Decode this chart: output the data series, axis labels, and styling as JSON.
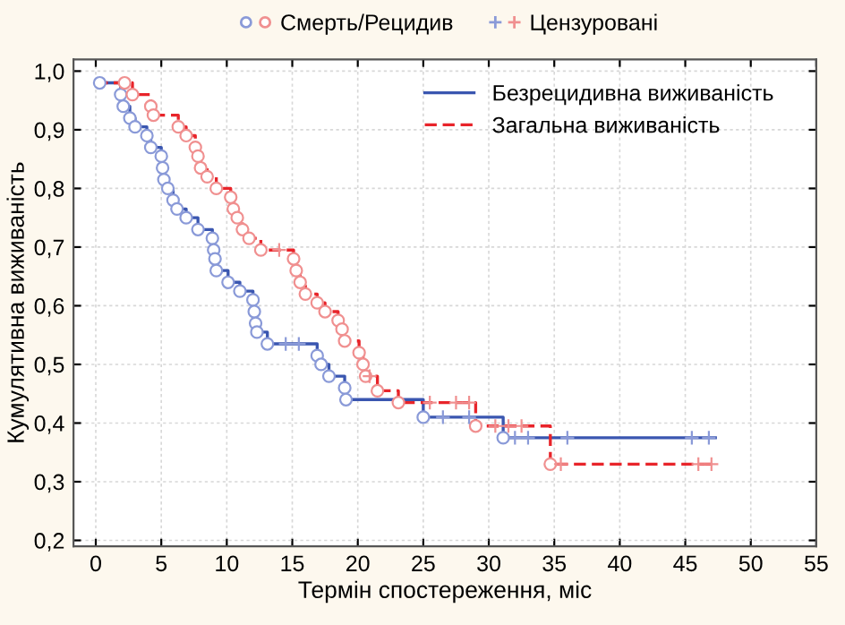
{
  "chart_data": {
    "type": "step",
    "xlabel": "Термін спостереження, міс",
    "ylabel": "Кумулятивна виживаність",
    "xlim": [
      -1.7,
      55
    ],
    "xticks": [
      0,
      5,
      10,
      15,
      20,
      25,
      30,
      35,
      40,
      45,
      50,
      55
    ],
    "ylim": [
      0.19,
      1.02
    ],
    "yticks": [
      {
        "value": 0.2,
        "label": "0,2"
      },
      {
        "value": 0.3,
        "label": "0,3"
      },
      {
        "value": 0.4,
        "label": "0,4"
      },
      {
        "value": 0.5,
        "label": "0,5"
      },
      {
        "value": 0.6,
        "label": "0,6"
      },
      {
        "value": 0.7,
        "label": "0,7"
      },
      {
        "value": 0.8,
        "label": "0,8"
      },
      {
        "value": 0.9,
        "label": "0,9"
      },
      {
        "value": 1.0,
        "label": "1,0"
      }
    ],
    "grid": true,
    "legend": "top right",
    "series": [
      {
        "name": "Безрецидивна виживаність",
        "color": "#3a56b0",
        "line_style": "solid",
        "x": [
          0,
          1.9,
          2.1,
          2.6,
          3.0,
          3.9,
          4.2,
          5.0,
          5.1,
          5.2,
          5.5,
          5.9,
          6.2,
          6.9,
          7.8,
          8.9,
          9.0,
          9.1,
          9.2,
          10.1,
          11.0,
          12.0,
          12.1,
          12.2,
          12.3,
          13.1,
          16.9,
          17.2,
          17.8,
          19.0,
          19.1,
          25.0,
          31.1,
          47.3
        ],
        "values": [
          0.98,
          0.96,
          0.94,
          0.92,
          0.905,
          0.89,
          0.87,
          0.855,
          0.835,
          0.815,
          0.8,
          0.78,
          0.765,
          0.75,
          0.73,
          0.715,
          0.695,
          0.68,
          0.66,
          0.64,
          0.625,
          0.61,
          0.59,
          0.57,
          0.555,
          0.535,
          0.515,
          0.5,
          0.48,
          0.46,
          0.44,
          0.41,
          0.375,
          0.375
        ]
      },
      {
        "name": "Загальна виживаність",
        "color": "#e8242a",
        "line_style": "dashed",
        "x": [
          0,
          2.8,
          4.2,
          4.4,
          6.3,
          6.9,
          7.6,
          7.8,
          8.0,
          8.5,
          9.2,
          10.3,
          10.5,
          10.8,
          11.2,
          11.7,
          12.6,
          15.1,
          15.3,
          15.6,
          16.0,
          16.9,
          17.5,
          18.5,
          18.8,
          19.0,
          20.1,
          20.4,
          20.6,
          21.5,
          23.1,
          29.0,
          34.7,
          47.3
        ],
        "values": [
          0.98,
          0.96,
          0.94,
          0.925,
          0.905,
          0.89,
          0.87,
          0.855,
          0.835,
          0.82,
          0.8,
          0.785,
          0.765,
          0.75,
          0.73,
          0.715,
          0.695,
          0.68,
          0.66,
          0.64,
          0.62,
          0.605,
          0.59,
          0.575,
          0.56,
          0.54,
          0.52,
          0.5,
          0.48,
          0.455,
          0.435,
          0.395,
          0.33,
          0.33
        ]
      },
      {
        "type": "scatter",
        "name": "Смерть/Рецидив",
        "marker": "circle",
        "x": [
          0.3,
          1.9,
          2.1,
          2.6,
          3.0,
          3.9,
          4.2,
          5.0,
          5.1,
          5.2,
          5.5,
          5.9,
          6.2,
          6.9,
          7.8,
          8.9,
          9.0,
          9.1,
          9.2,
          10.1,
          11.0,
          12.0,
          12.1,
          12.2,
          12.3,
          13.1,
          16.9,
          17.2,
          17.8,
          19.0,
          19.1,
          25.0,
          31.1,
          2.2,
          2.8,
          4.2,
          4.4,
          6.3,
          6.9,
          7.6,
          7.8,
          8.0,
          8.5,
          9.2,
          10.3,
          10.5,
          10.8,
          11.2,
          11.7,
          12.6,
          15.1,
          15.3,
          15.6,
          16.0,
          16.9,
          17.5,
          18.5,
          18.8,
          19.0,
          20.1,
          20.4,
          20.6,
          21.5,
          23.1,
          29.0,
          34.7
        ],
        "values": [
          0.98,
          0.96,
          0.94,
          0.92,
          0.905,
          0.89,
          0.87,
          0.855,
          0.835,
          0.815,
          0.8,
          0.78,
          0.765,
          0.75,
          0.73,
          0.715,
          0.695,
          0.68,
          0.66,
          0.64,
          0.625,
          0.61,
          0.59,
          0.57,
          0.555,
          0.535,
          0.515,
          0.5,
          0.48,
          0.46,
          0.44,
          0.41,
          0.375,
          0.98,
          0.96,
          0.94,
          0.925,
          0.905,
          0.89,
          0.87,
          0.855,
          0.835,
          0.82,
          0.8,
          0.785,
          0.765,
          0.75,
          0.73,
          0.715,
          0.695,
          0.68,
          0.66,
          0.64,
          0.62,
          0.605,
          0.59,
          0.575,
          0.56,
          0.54,
          0.52,
          0.5,
          0.48,
          0.455,
          0.435,
          0.395,
          0.33
        ],
        "colors": [
          "#8a9ad8",
          "#8a9ad8",
          "#8a9ad8",
          "#8a9ad8",
          "#8a9ad8",
          "#8a9ad8",
          "#8a9ad8",
          "#8a9ad8",
          "#8a9ad8",
          "#8a9ad8",
          "#8a9ad8",
          "#8a9ad8",
          "#8a9ad8",
          "#8a9ad8",
          "#8a9ad8",
          "#8a9ad8",
          "#8a9ad8",
          "#8a9ad8",
          "#8a9ad8",
          "#8a9ad8",
          "#8a9ad8",
          "#8a9ad8",
          "#8a9ad8",
          "#8a9ad8",
          "#8a9ad8",
          "#8a9ad8",
          "#8a9ad8",
          "#8a9ad8",
          "#8a9ad8",
          "#8a9ad8",
          "#8a9ad8",
          "#8a9ad8",
          "#8a9ad8",
          "#f09090",
          "#f09090",
          "#f09090",
          "#f09090",
          "#f09090",
          "#f09090",
          "#f09090",
          "#f09090",
          "#f09090",
          "#f09090",
          "#f09090",
          "#f09090",
          "#f09090",
          "#f09090",
          "#f09090",
          "#f09090",
          "#f09090",
          "#f09090",
          "#f09090",
          "#f09090",
          "#f09090",
          "#f09090",
          "#f09090",
          "#f09090",
          "#f09090",
          "#f09090",
          "#f09090",
          "#f09090",
          "#f09090",
          "#f09090",
          "#f09090",
          "#f09090",
          "#f09090"
        ]
      },
      {
        "type": "scatter",
        "name": "Цензуровані",
        "marker": "cross",
        "x": [
          14.5,
          15.5,
          26.5,
          28.5,
          32.0,
          33.0,
          36.0,
          45.5,
          46.8,
          14.0,
          20.9,
          25.5,
          27.5,
          28.5,
          30.5,
          31.5,
          32.5,
          35.5,
          46.0,
          47.0
        ],
        "values": [
          0.535,
          0.535,
          0.41,
          0.41,
          0.375,
          0.375,
          0.375,
          0.375,
          0.375,
          0.695,
          0.48,
          0.435,
          0.435,
          0.435,
          0.395,
          0.395,
          0.395,
          0.33,
          0.33,
          0.33
        ],
        "colors": [
          "#8a9ad8",
          "#8a9ad8",
          "#8a9ad8",
          "#8a9ad8",
          "#8a9ad8",
          "#8a9ad8",
          "#8a9ad8",
          "#8a9ad8",
          "#8a9ad8",
          "#f09090",
          "#f09090",
          "#f09090",
          "#f09090",
          "#f09090",
          "#f09090",
          "#f09090",
          "#f09090",
          "#f09090",
          "#f09090",
          "#f09090"
        ]
      }
    ]
  }
}
